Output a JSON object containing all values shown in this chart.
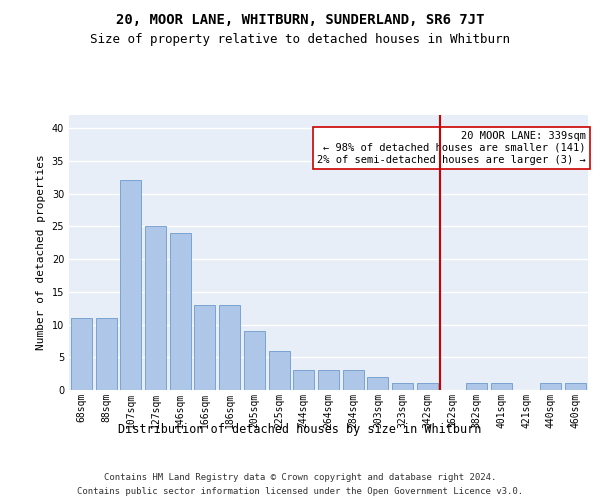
{
  "title": "20, MOOR LANE, WHITBURN, SUNDERLAND, SR6 7JT",
  "subtitle": "Size of property relative to detached houses in Whitburn",
  "xlabel": "Distribution of detached houses by size in Whitburn",
  "ylabel": "Number of detached properties",
  "categories": [
    "68sqm",
    "88sqm",
    "107sqm",
    "127sqm",
    "146sqm",
    "166sqm",
    "186sqm",
    "205sqm",
    "225sqm",
    "244sqm",
    "264sqm",
    "284sqm",
    "303sqm",
    "323sqm",
    "342sqm",
    "362sqm",
    "382sqm",
    "401sqm",
    "421sqm",
    "440sqm",
    "460sqm"
  ],
  "values": [
    11,
    11,
    32,
    25,
    24,
    13,
    13,
    9,
    6,
    3,
    3,
    3,
    2,
    1,
    1,
    0,
    1,
    1,
    0,
    1,
    1
  ],
  "bar_color": "#aec6e8",
  "bar_edge_color": "#5b8dc8",
  "background_color": "#e8eef7",
  "grid_color": "#ffffff",
  "vline_index": 14,
  "vline_color": "#cc0000",
  "annotation_text": "20 MOOR LANE: 339sqm\n← 98% of detached houses are smaller (141)\n2% of semi-detached houses are larger (3) →",
  "annotation_box_color": "#ffffff",
  "annotation_box_edge": "#cc0000",
  "footnote_line1": "Contains HM Land Registry data © Crown copyright and database right 2024.",
  "footnote_line2": "Contains public sector information licensed under the Open Government Licence v3.0.",
  "ylim": [
    0,
    42
  ],
  "yticks": [
    0,
    5,
    10,
    15,
    20,
    25,
    30,
    35,
    40
  ],
  "title_fontsize": 10,
  "subtitle_fontsize": 9,
  "axis_label_fontsize": 8.5,
  "tick_fontsize": 7,
  "annotation_fontsize": 7.5,
  "footnote_fontsize": 6.5,
  "ylabel_fontsize": 8
}
